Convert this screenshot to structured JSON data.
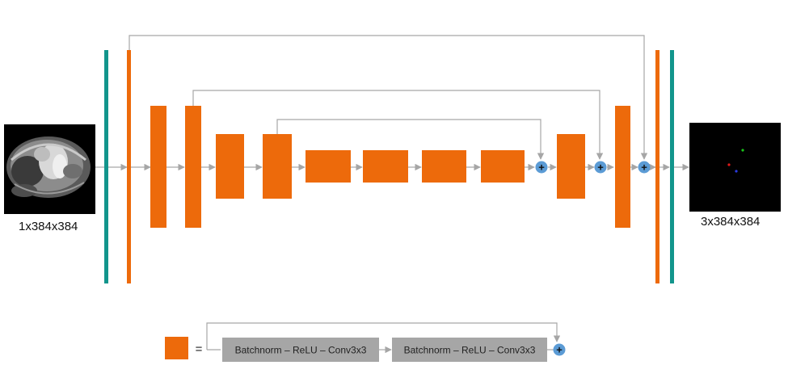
{
  "input": {
    "shape_label": "1x384x384"
  },
  "output": {
    "shape_label": "3x384x384"
  },
  "legend": {
    "equals_sign": "=",
    "box1_label": "Batchnorm – ReLU – Conv3x3",
    "box2_label": "Batchnorm – ReLU – Conv3x3"
  },
  "sum_symbol": "+",
  "colors": {
    "block": "#ED6A0B",
    "conv_bar": "#12958C",
    "sum_node": "#5B9BD5",
    "arrow": "#A6A6A6",
    "legend_box": "#A6A6A6"
  }
}
